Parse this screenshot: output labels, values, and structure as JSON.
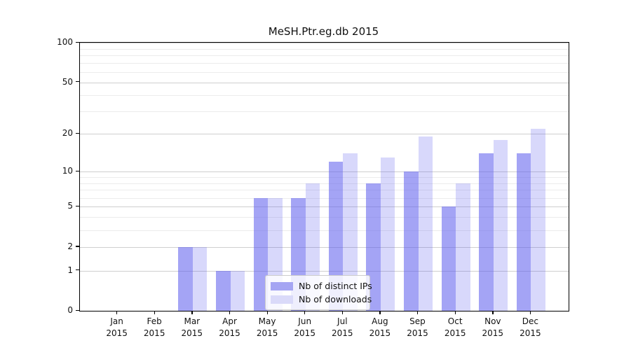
{
  "chart_data": {
    "type": "bar",
    "title": "MeSH.Ptr.eg.db 2015",
    "xlabel": "",
    "ylabel": "",
    "categories": [
      "Jan 2015",
      "Feb 2015",
      "Mar 2015",
      "Apr 2015",
      "May 2015",
      "Jun 2015",
      "Jul 2015",
      "Aug 2015",
      "Sep 2015",
      "Oct 2015",
      "Nov 2015",
      "Dec 2015"
    ],
    "category_line1": [
      "Jan",
      "Feb",
      "Mar",
      "Apr",
      "May",
      "Jun",
      "Jul",
      "Aug",
      "Sep",
      "Oct",
      "Nov",
      "Dec"
    ],
    "category_line2": [
      "2015",
      "2015",
      "2015",
      "2015",
      "2015",
      "2015",
      "2015",
      "2015",
      "2015",
      "2015",
      "2015",
      "2015"
    ],
    "series": [
      {
        "name": "Nb of distinct IPs",
        "color": "rgba(92,92,238,0.56)",
        "legend_color": "#a5a5f3",
        "values": [
          0,
          0,
          2,
          1,
          6,
          6,
          12,
          8,
          10,
          5,
          14,
          14
        ]
      },
      {
        "name": "Nb of downloads",
        "color": "rgba(92,92,238,0.24)",
        "legend_color": "#dadaf9",
        "values": [
          0,
          0,
          2,
          1,
          6,
          8,
          14,
          13,
          19,
          8,
          18,
          22
        ]
      }
    ],
    "y_scale": "log1p",
    "ylim": [
      0,
      100
    ],
    "y_ticks": [
      0,
      1,
      2,
      5,
      10,
      20,
      50,
      100
    ],
    "y_minor_gridlines": [
      3,
      4,
      6,
      7,
      8,
      9,
      30,
      40,
      60,
      70,
      80,
      90
    ],
    "grid": "on",
    "legend_position": "lower center",
    "colors": {
      "major_grid": "#cfcfcf",
      "minor_grid": "#ececec",
      "axis": "#000000",
      "background": "#ffffff"
    }
  }
}
